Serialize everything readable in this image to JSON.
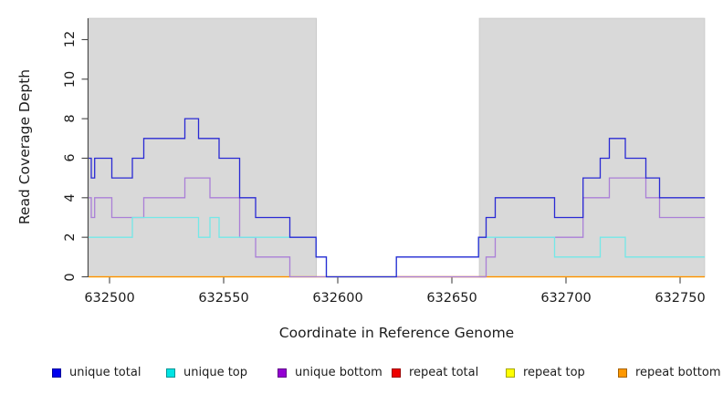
{
  "chart_data": {
    "type": "line",
    "subtype": "step",
    "title": "",
    "xlabel": "Coordinate in Reference Genome",
    "ylabel": "Read Coverage Depth",
    "xlim": [
      632490.8,
      632760.8
    ],
    "ylim": [
      0,
      13.07
    ],
    "x_ticks": [
      632500,
      632550,
      632600,
      632650,
      632700,
      632750
    ],
    "x_tick_labels": [
      "632500",
      "632550",
      "632600",
      "632650",
      "632700",
      "632750"
    ],
    "y_ticks": [
      0,
      2,
      4,
      6,
      8,
      10,
      12
    ],
    "y_tick_labels": [
      "0",
      "2",
      "4",
      "6",
      "8",
      "10",
      "12"
    ],
    "grid": false,
    "legend_position": "bottom",
    "background_bands": {
      "color": "#d9d9d9",
      "border_color": "#bfbfbf",
      "regions": [
        [
          632490.8,
          632590.7
        ],
        [
          632662.0,
          632760.8
        ]
      ]
    },
    "series": [
      {
        "name": "unique total",
        "color": "#2a2ad4",
        "x_end": 632760.8,
        "steps": [
          [
            632490.8,
            6
          ],
          [
            632492,
            5
          ],
          [
            632493.5,
            6
          ],
          [
            632501,
            5
          ],
          [
            632510,
            6
          ],
          [
            632515,
            7
          ],
          [
            632533,
            8
          ],
          [
            632539,
            7
          ],
          [
            632548,
            6
          ],
          [
            632557,
            4
          ],
          [
            632564,
            3
          ],
          [
            632579,
            2
          ],
          [
            632590.5,
            1
          ],
          [
            632595,
            0
          ],
          [
            632625.7,
            1
          ],
          [
            632661.7,
            2
          ],
          [
            632665,
            3
          ],
          [
            632669,
            4
          ],
          [
            632695,
            3
          ],
          [
            632707.5,
            5
          ],
          [
            632715,
            6
          ],
          [
            632719,
            7
          ],
          [
            632726,
            6
          ],
          [
            632735,
            5
          ],
          [
            632741,
            4
          ]
        ]
      },
      {
        "name": "unique top",
        "color": "#74e8e8",
        "x_end": 632760.8,
        "steps": [
          [
            632490.8,
            2
          ],
          [
            632510,
            3
          ],
          [
            632539,
            2
          ],
          [
            632544,
            3
          ],
          [
            632548,
            2
          ],
          [
            632590.5,
            1
          ],
          [
            632595,
            0
          ],
          [
            632625.7,
            1
          ],
          [
            632661.7,
            2
          ],
          [
            632695,
            1
          ],
          [
            632715,
            2
          ],
          [
            632726,
            1
          ]
        ]
      },
      {
        "name": "unique bottom",
        "color": "#aa7fd7",
        "x_end": 632760.8,
        "steps": [
          [
            632490.8,
            4
          ],
          [
            632492,
            3
          ],
          [
            632493.5,
            4
          ],
          [
            632501,
            3
          ],
          [
            632515,
            4
          ],
          [
            632533,
            5
          ],
          [
            632544,
            4
          ],
          [
            632557,
            2
          ],
          [
            632564,
            1
          ],
          [
            632579,
            0
          ],
          [
            632665,
            1
          ],
          [
            632669,
            2
          ],
          [
            632707.5,
            4
          ],
          [
            632719,
            5
          ],
          [
            632735,
            4
          ],
          [
            632741,
            3
          ]
        ]
      },
      {
        "name": "repeat total",
        "color": "#cd5a6a",
        "x_end": 632665,
        "steps": [
          [
            632625.7,
            0
          ]
        ]
      },
      {
        "name": "repeat top",
        "color": "#ffff00",
        "x_end": 632760.8,
        "steps": [
          [
            632490.8,
            0
          ]
        ]
      },
      {
        "name": "repeat bottom",
        "color": "#ff8c00",
        "x_end": 632760.8,
        "steps": [
          [
            632490.8,
            0
          ]
        ]
      }
    ],
    "draw_order": [
      "repeat top",
      "repeat bottom",
      "repeat total",
      "unique bottom",
      "unique top",
      "unique total"
    ],
    "legend": [
      {
        "label": "unique total",
        "color": "#0000ee"
      },
      {
        "label": "unique top",
        "color": "#00e4e4"
      },
      {
        "label": "unique bottom",
        "color": "#9400d3"
      },
      {
        "label": "repeat total",
        "color": "#ee0000"
      },
      {
        "label": "repeat top",
        "color": "#ffff00"
      },
      {
        "label": "repeat bottom",
        "color": "#ff9800"
      }
    ]
  }
}
